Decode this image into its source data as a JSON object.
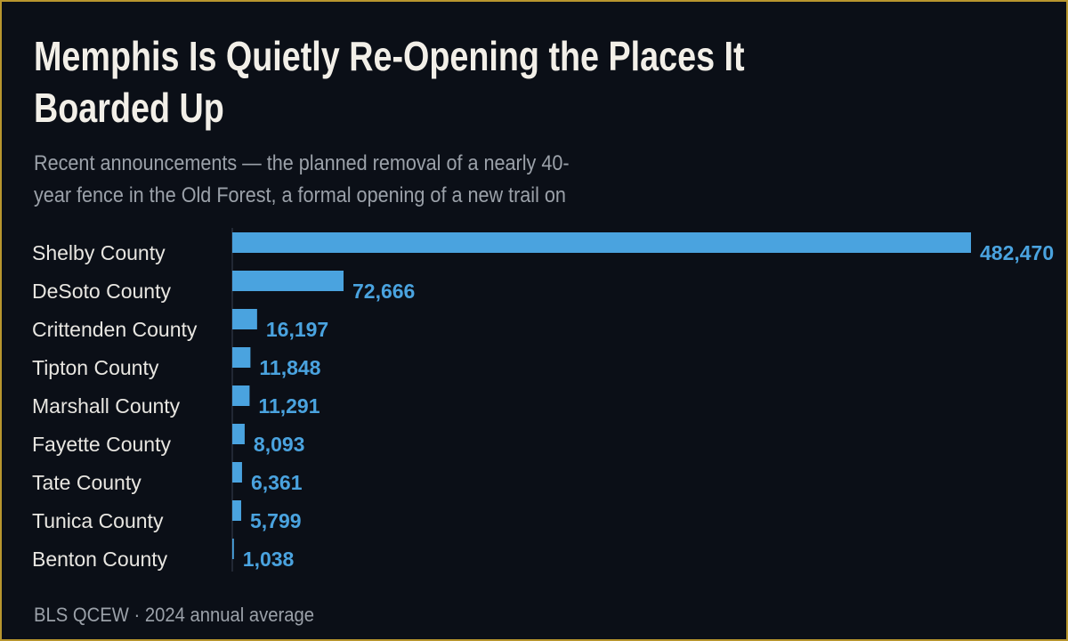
{
  "chart_data": {
    "type": "bar",
    "orientation": "horizontal",
    "title": "Memphis Is Quietly Re-Opening the Places It Boarded Up",
    "subtitle": "Recent announcements — the planned removal of a nearly 40-year fence in the Old Forest, a formal opening of a new trail on",
    "source": "BLS QCEW · 2024 annual average",
    "categories": [
      "Shelby County",
      "DeSoto County",
      "Crittenden County",
      "Tipton County",
      "Marshall County",
      "Fayette County",
      "Tate County",
      "Tunica County",
      "Benton County"
    ],
    "values": [
      482470,
      72666,
      16197,
      11848,
      11291,
      8093,
      6361,
      5799,
      1038
    ],
    "value_labels": [
      "482,470",
      "72,666",
      "16,197",
      "11,848",
      "11,291",
      "8,093",
      "6,361",
      "5,799",
      "1,038"
    ],
    "color": "#4aa3df"
  }
}
